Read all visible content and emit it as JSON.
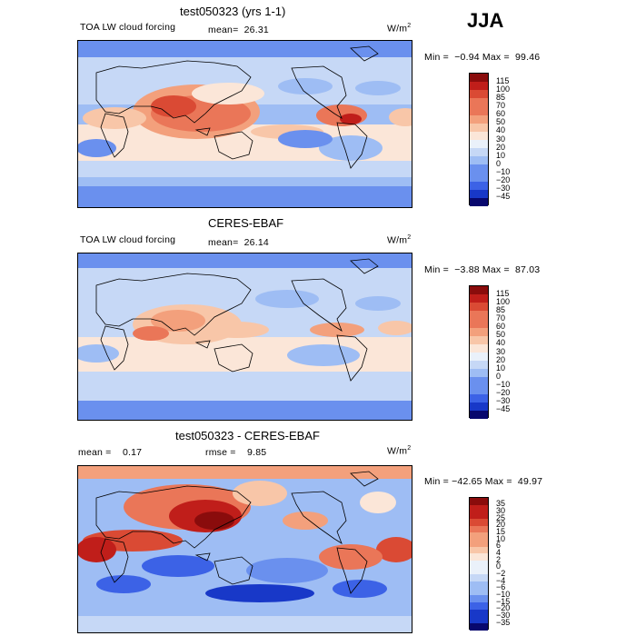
{
  "season": "JJA",
  "units_base": "W/m",
  "units_exp": "2",
  "palette_main": [
    "#08086e",
    "#1838c8",
    "#3c62e6",
    "#6a90ee",
    "#9ebdf4",
    "#c6d8f6",
    "#eaf1fa",
    "#fbe6d8",
    "#f8c6a8",
    "#f3a07c",
    "#ea7658",
    "#da4a34",
    "#c01e1a",
    "#8a0c0c"
  ],
  "palette_diff": [
    "#08086e",
    "#1838c8",
    "#3c62e6",
    "#6a90ee",
    "#9ebdf4",
    "#c6d8f6",
    "#eaf1fa",
    "#fbe6d8",
    "#f8c6a8",
    "#f3a07c",
    "#ea7658",
    "#da4a34",
    "#c01e1a",
    "#8a0c0c"
  ],
  "panels": [
    {
      "title": "test050323 (yrs 1-1)",
      "variable": "TOA LW cloud forcing",
      "mean_text": "mean=  26.31",
      "minmax_text": "Min =  −0.94 Max =  99.46"
    },
    {
      "title": "CERES-EBAF",
      "variable": "TOA LW cloud forcing",
      "mean_text": "mean=  26.14",
      "minmax_text": "Min =  −3.88 Max =  87.03"
    },
    {
      "title": "test050323 - CERES-EBAF",
      "mean_text": "mean =    0.17",
      "rmse_text": "rmse =    9.85",
      "minmax_text": "Min = −42.65 Max =  49.97"
    }
  ],
  "chart_data": [
    {
      "type": "heatmap",
      "title": "test050323 (yrs 1-1)",
      "subtitle": "TOA LW cloud forcing",
      "units": "W/m2",
      "season": "JJA",
      "mean": 26.31,
      "min": -0.94,
      "max": 99.46,
      "levels": [
        "115",
        "100",
        "85",
        "70",
        "60",
        "50",
        "40",
        "30",
        "20",
        "10",
        "0",
        "−10",
        "−20",
        "−30",
        "−45"
      ]
    },
    {
      "type": "heatmap",
      "title": "CERES-EBAF",
      "subtitle": "TOA LW cloud forcing",
      "units": "W/m2",
      "season": "JJA",
      "mean": 26.14,
      "min": -3.88,
      "max": 87.03,
      "levels": [
        "115",
        "100",
        "85",
        "70",
        "60",
        "50",
        "40",
        "30",
        "20",
        "10",
        "0",
        "−10",
        "−20",
        "−30",
        "−45"
      ]
    },
    {
      "type": "heatmap",
      "title": "test050323 - CERES-EBAF",
      "units": "W/m2",
      "season": "JJA",
      "mean": 0.17,
      "rmse": 9.85,
      "min": -42.65,
      "max": 49.97,
      "levels": [
        "35",
        "30",
        "25",
        "20",
        "15",
        "10",
        "6",
        "4",
        "2",
        "0",
        "−2",
        "−4",
        "−6",
        "−10",
        "−15",
        "−20",
        "−30",
        "−35"
      ]
    }
  ]
}
